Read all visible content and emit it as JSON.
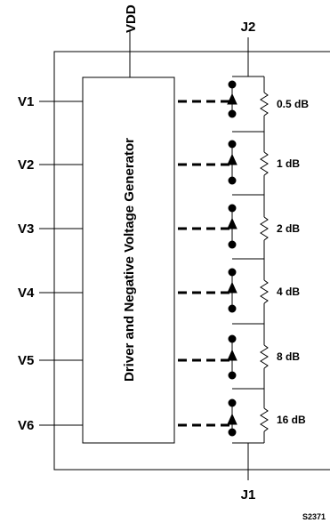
{
  "diagram": {
    "supply_pin": "VDD",
    "rf_ports": {
      "top": "J2",
      "bottom": "J1"
    },
    "control_inputs": [
      "V1",
      "V2",
      "V3",
      "V4",
      "V5",
      "V6"
    ],
    "block_label": "Driver and Negative Voltage Generator",
    "attenuation_steps": [
      "0.5 dB",
      "1 dB",
      "2 dB",
      "4 dB",
      "8 dB",
      "16 dB"
    ],
    "drawing_code": "S2371"
  }
}
